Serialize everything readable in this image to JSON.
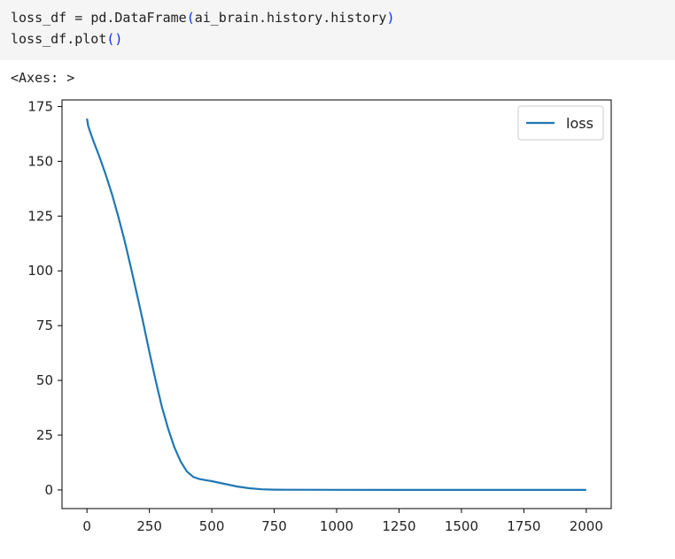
{
  "code_cell": {
    "line1": {
      "var": "loss_df",
      "op": " = ",
      "call": "pd.DataFrame",
      "open": "(",
      "arg": "ai_brain.history.history",
      "close": ")"
    },
    "line2": {
      "call": "loss_df.plot",
      "open": "(",
      "close": ")"
    }
  },
  "output": {
    "repr": "<Axes: >"
  },
  "chart_data": {
    "type": "line",
    "title": "",
    "xlabel": "",
    "ylabel": "",
    "xlim": [
      -100,
      2100
    ],
    "ylim": [
      -8.5,
      178
    ],
    "xticks": [
      0,
      250,
      500,
      750,
      1000,
      1250,
      1500,
      1750,
      2000
    ],
    "yticks": [
      0,
      25,
      50,
      75,
      100,
      125,
      150,
      175
    ],
    "grid": false,
    "legend_position": "top-right",
    "series": [
      {
        "name": "loss",
        "color": "#1f77b4",
        "x": [
          0,
          5,
          25,
          50,
          75,
          100,
          125,
          150,
          175,
          200,
          225,
          250,
          275,
          300,
          325,
          350,
          375,
          400,
          425,
          450,
          475,
          500,
          550,
          600,
          650,
          700,
          750,
          800,
          1000,
          1250,
          1500,
          1750,
          2000
        ],
        "y": [
          169.5,
          166,
          159.5,
          152,
          144,
          135,
          125,
          114,
          102,
          89.5,
          76.5,
          63,
          50,
          38,
          28,
          19.5,
          13,
          8.5,
          6,
          5,
          4.5,
          4,
          2.8,
          1.6,
          0.8,
          0.3,
          0.15,
          0.1,
          0.05,
          0.03,
          0.02,
          0.01,
          0.01
        ]
      }
    ]
  }
}
